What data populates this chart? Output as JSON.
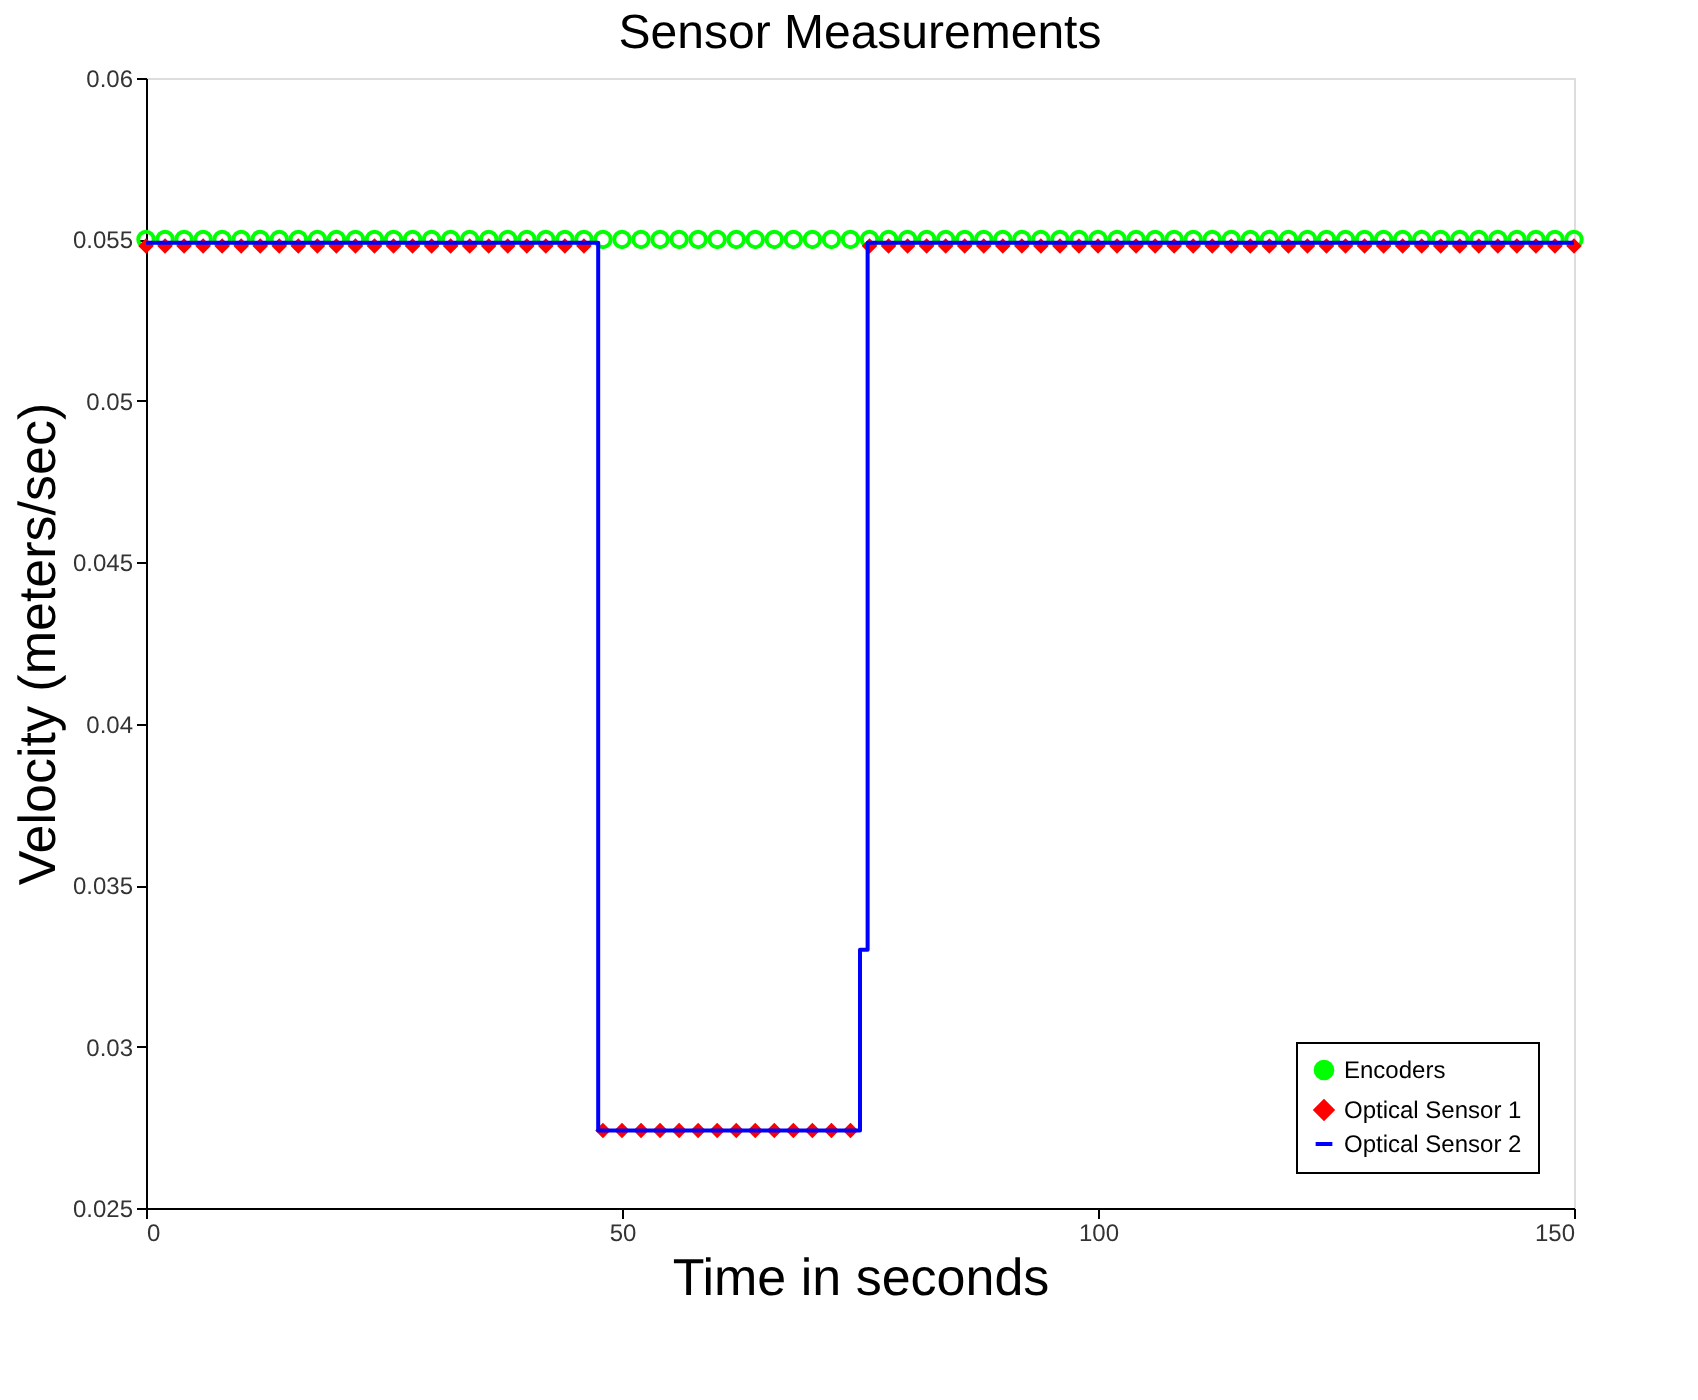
{
  "chart_data": {
    "type": "scatter",
    "title": "Sensor Measurements",
    "xlabel": "Time in seconds",
    "ylabel": "Velocity (meters/sec)",
    "xlim": [
      0,
      150
    ],
    "xticks": [
      0,
      50,
      100,
      150
    ],
    "ylim": [
      0.025,
      0.06
    ],
    "yticks": [
      0.025,
      0.03,
      0.035,
      0.04,
      0.045,
      0.05,
      0.055,
      0.06
    ],
    "grid": false,
    "legend": "bottom right",
    "series": [
      {
        "name": "Encoders",
        "marker": "circle",
        "color": "#00ff00",
        "x": [
          0,
          2,
          4,
          6,
          8,
          10,
          12,
          14,
          16,
          18,
          20,
          22,
          24,
          26,
          28,
          30,
          32,
          34,
          36,
          38,
          40,
          42,
          44,
          46,
          48,
          50,
          52,
          54,
          56,
          58,
          60,
          62,
          64,
          66,
          68,
          70,
          72,
          74,
          76,
          78,
          80,
          82,
          84,
          86,
          88,
          90,
          92,
          94,
          96,
          98,
          100,
          102,
          104,
          106,
          108,
          110,
          112,
          114,
          116,
          118,
          120,
          122,
          124,
          126,
          128,
          130,
          132,
          134,
          136,
          138,
          140,
          142,
          144,
          146,
          148,
          150
        ],
        "values": [
          0.055,
          0.055,
          0.055,
          0.055,
          0.055,
          0.055,
          0.055,
          0.055,
          0.055,
          0.055,
          0.055,
          0.055,
          0.055,
          0.055,
          0.055,
          0.055,
          0.055,
          0.055,
          0.055,
          0.055,
          0.055,
          0.055,
          0.055,
          0.055,
          0.055,
          0.055,
          0.055,
          0.055,
          0.055,
          0.055,
          0.055,
          0.055,
          0.055,
          0.055,
          0.055,
          0.055,
          0.055,
          0.055,
          0.055,
          0.055,
          0.055,
          0.055,
          0.055,
          0.055,
          0.055,
          0.055,
          0.055,
          0.055,
          0.055,
          0.055,
          0.055,
          0.055,
          0.055,
          0.055,
          0.055,
          0.055,
          0.055,
          0.055,
          0.055,
          0.055,
          0.055,
          0.055,
          0.055,
          0.055,
          0.055,
          0.055,
          0.055,
          0.055,
          0.055,
          0.055,
          0.055,
          0.055,
          0.055,
          0.055,
          0.055,
          0.055
        ]
      },
      {
        "name": "Optical Sensor 1",
        "marker": "diamond",
        "color": "#ff0000",
        "x": [
          0,
          2,
          4,
          6,
          8,
          10,
          12,
          14,
          16,
          18,
          20,
          22,
          24,
          26,
          28,
          30,
          32,
          34,
          36,
          38,
          40,
          42,
          44,
          46,
          48,
          50,
          52,
          54,
          56,
          58,
          60,
          62,
          64,
          66,
          68,
          70,
          72,
          74,
          76,
          78,
          80,
          82,
          84,
          86,
          88,
          90,
          92,
          94,
          96,
          98,
          100,
          102,
          104,
          106,
          108,
          110,
          112,
          114,
          116,
          118,
          120,
          122,
          124,
          126,
          128,
          130,
          132,
          134,
          136,
          138,
          140,
          142,
          144,
          146,
          148,
          150
        ],
        "values": [
          0.0548,
          0.0548,
          0.0548,
          0.0548,
          0.0548,
          0.0548,
          0.0548,
          0.0548,
          0.0548,
          0.0548,
          0.0548,
          0.0548,
          0.0548,
          0.0548,
          0.0548,
          0.0548,
          0.0548,
          0.0548,
          0.0548,
          0.0548,
          0.0548,
          0.0548,
          0.0548,
          0.0548,
          0.0274,
          0.0274,
          0.0274,
          0.0274,
          0.0274,
          0.0274,
          0.0274,
          0.0274,
          0.0274,
          0.0274,
          0.0274,
          0.0274,
          0.0274,
          0.0274,
          0.0548,
          0.0548,
          0.0548,
          0.0548,
          0.0548,
          0.0548,
          0.0548,
          0.0548,
          0.0548,
          0.0548,
          0.0548,
          0.0548,
          0.0548,
          0.0548,
          0.0548,
          0.0548,
          0.0548,
          0.0548,
          0.0548,
          0.0548,
          0.0548,
          0.0548,
          0.0548,
          0.0548,
          0.0548,
          0.0548,
          0.0548,
          0.0548,
          0.0548,
          0.0548,
          0.0548,
          0.0548,
          0.0548,
          0.0548,
          0.0548,
          0.0548,
          0.0548,
          0.0548
        ]
      },
      {
        "name": "Optical Sensor 2",
        "type": "line",
        "marker": "none",
        "line_style": "solid",
        "color": "#0000ff",
        "x": [
          0,
          47.5,
          47.5,
          75,
          75,
          75.8,
          75.8,
          150
        ],
        "values": [
          0.0549,
          0.0549,
          0.0274,
          0.0274,
          0.033,
          0.033,
          0.0549,
          0.0549
        ]
      }
    ]
  }
}
